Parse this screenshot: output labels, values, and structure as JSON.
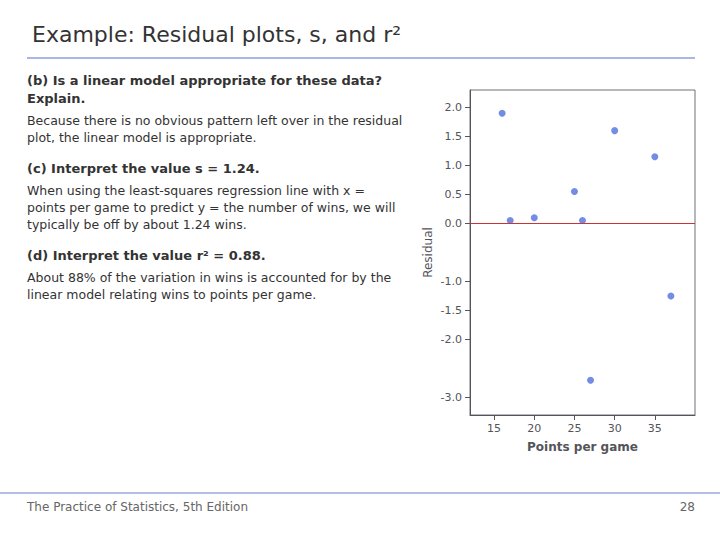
{
  "chart_data": {
    "type": "scatter",
    "title": "Example: Residual plots, s, and r²",
    "sections": [
      {
        "heading": "(b) Is a linear model appropriate for these data? Explain.",
        "text": "Because there is no obvious pattern left over in the residual plot, the linear model is appropriate."
      },
      {
        "heading": "(c) Interpret the value s = 1.24.",
        "text": "When using the least-squares regression line with x = points per game to predict y = the number of wins, we will typically be off by about 1.24 wins."
      },
      {
        "heading": "(d) Interpret the value r² = 0.88.",
        "text": "About 88% of the variation in wins is accounted for by the linear model relating wins to points per game."
      }
    ],
    "footer": "The Practice of Statistics, 5th Edition",
    "page": "28",
    "x": [
      16,
      17,
      20,
      25,
      26,
      27,
      30,
      35,
      37
    ],
    "values": [
      1.9,
      0.05,
      0.1,
      0.55,
      0.05,
      -2.7,
      1.6,
      1.15,
      -1.25
    ],
    "xlabel": "Points per game",
    "ylabel": "Residual",
    "xlim": [
      12,
      40
    ],
    "ylim": [
      -3.3,
      2.3
    ],
    "xticks": [
      15,
      20,
      25,
      30,
      35
    ],
    "yticks": [
      {
        "value": -3.0,
        "label": "-3.0"
      },
      {
        "value": -2.0,
        "label": "-2.0"
      },
      -1.5,
      {
        "value": -1.0,
        "label": "-1.0"
      },
      {
        "value": 0.0,
        "label": "0.0"
      },
      0.5,
      {
        "value": 1.0,
        "label": "1.0"
      },
      1.5,
      {
        "value": 2.0,
        "label": "2.0"
      }
    ],
    "grid": false,
    "reference_line": {
      "y": 0,
      "color": "#cc3333"
    }
  }
}
